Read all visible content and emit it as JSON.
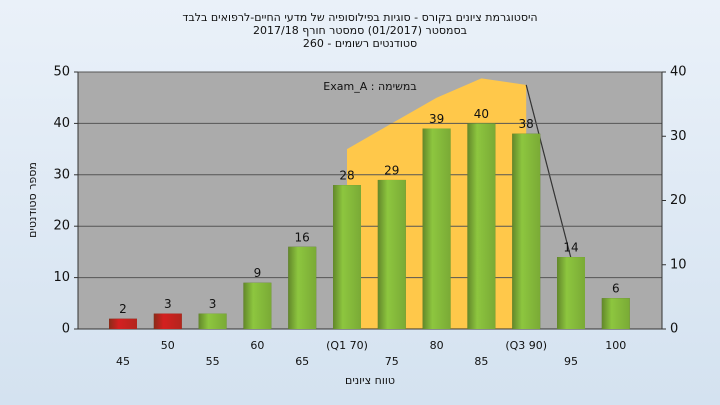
{
  "chart_data": {
    "type": "bar",
    "title": "היסטוגרמת ציונים בקורס - סוגיות בפילוסופיה של מדעי החיים-לרפואים בלבד",
    "subtitle": "בסמסטר  (01/2017)  סמסטר חורף 2017/18",
    "subtitle2": "סטודנטים רשומים - 260",
    "annotation": "במשימה : Exam_A",
    "xlabel": "טווח ציונים",
    "ylabel": "מספר סטודנטים",
    "categories": [
      "45",
      "50",
      "55",
      "60",
      "65",
      "(Q1 70)",
      "75",
      "80",
      "85",
      "(Q3 90)",
      "95",
      "100"
    ],
    "values": [
      2,
      3,
      3,
      9,
      16,
      28,
      29,
      39,
      40,
      38,
      14,
      6
    ],
    "colors": [
      "#d42020",
      "#d42020",
      "#8dc63f",
      "#8dc63f",
      "#8dc63f",
      "#8dc63f",
      "#8dc63f",
      "#8dc63f",
      "#8dc63f",
      "#8dc63f",
      "#8dc63f",
      "#8dc63f"
    ],
    "overlay": [
      {
        "kind": "area",
        "color": "#ffc84a",
        "axis": "y2",
        "values": [
          null,
          null,
          null,
          null,
          null,
          28,
          32,
          36,
          39,
          38,
          null,
          null
        ]
      },
      {
        "kind": "line",
        "color": "#333333",
        "axis": "y2",
        "values": [
          null,
          null,
          null,
          null,
          null,
          null,
          null,
          null,
          null,
          38,
          11,
          null
        ]
      }
    ],
    "ylim": [
      0,
      50
    ],
    "yticks": [
      0,
      10,
      20,
      30,
      40,
      50
    ],
    "y2lim": [
      0,
      40
    ],
    "y2ticks": [
      0,
      10,
      20,
      30,
      40
    ],
    "grid": true
  }
}
